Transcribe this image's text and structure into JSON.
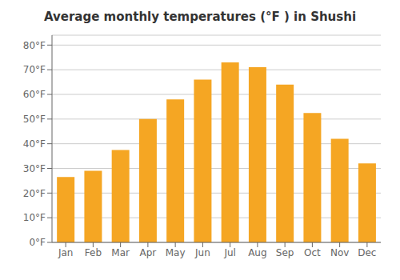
{
  "chart_data": {
    "type": "bar",
    "title": "Average monthly temperatures (°F ) in Shushi",
    "categories": [
      "Jan",
      "Feb",
      "Mar",
      "Apr",
      "May",
      "Jun",
      "Jul",
      "Aug",
      "Sep",
      "Oct",
      "Nov",
      "Dec"
    ],
    "values": [
      26.5,
      29,
      37.5,
      50,
      58,
      66,
      73,
      71,
      64,
      52.5,
      42,
      32
    ],
    "color": "#F5A623",
    "ylim": [
      0,
      84
    ],
    "yticks": [
      {
        "value": 0,
        "label": "0°F"
      },
      {
        "value": 10,
        "label": "10°F"
      },
      {
        "value": 20,
        "label": "20°F"
      },
      {
        "value": 30,
        "label": "30°F"
      },
      {
        "value": 40,
        "label": "40°F"
      },
      {
        "value": 50,
        "label": "50°F"
      },
      {
        "value": 60,
        "label": "60°F"
      },
      {
        "value": 70,
        "label": "70°F"
      },
      {
        "value": 80,
        "label": "80°F"
      }
    ],
    "grid": true
  }
}
